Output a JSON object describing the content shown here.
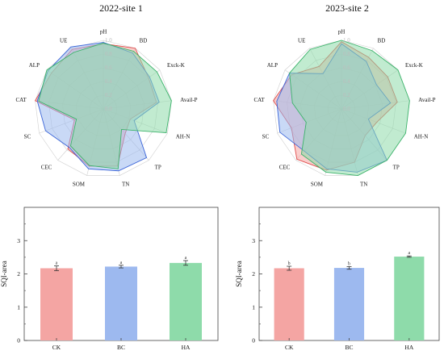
{
  "colors": {
    "CK": "#f4a5a3",
    "BC": "#9db9ef",
    "HA": "#8edbaa",
    "CK_line": "#e04a4a",
    "BC_line": "#3a64d8",
    "HA_line": "#3bb36a"
  },
  "chart_data": [
    {
      "type": "radar",
      "title": "2022-site 1",
      "axes": [
        "pH",
        "BD",
        "Exck-K",
        "Avail-P",
        "AH-N",
        "TP",
        "TN",
        "SOM",
        "CEC",
        "SC",
        "CAT",
        "ALP",
        "UE"
      ],
      "r_ticks": [
        "0.0",
        "0.2",
        "0.4",
        "0.6",
        "0.8",
        "1.0"
      ],
      "rlim": [
        0,
        1
      ],
      "series": [
        {
          "name": "CK",
          "values": [
            0.95,
            1.0,
            0.8,
            0.78,
            0.42,
            0.48,
            0.86,
            0.86,
            0.78,
            0.45,
            1.0,
            0.92,
            0.98
          ]
        },
        {
          "name": "BC",
          "values": [
            0.97,
            0.92,
            0.82,
            0.82,
            0.48,
            0.95,
            0.93,
            0.9,
            0.75,
            0.9,
            0.97,
            0.98,
            1.02
          ]
        },
        {
          "name": "HA",
          "values": [
            0.96,
            0.95,
            0.95,
            1.0,
            0.98,
            0.4,
            0.9,
            0.85,
            0.72,
            0.42,
            0.95,
            1.0,
            0.93
          ]
        }
      ]
    },
    {
      "type": "radar",
      "title": "2023-site 2",
      "axes": [
        "pH",
        "BD",
        "Exck-K",
        "Avail-P",
        "AH-N",
        "TP",
        "TN",
        "SOM",
        "CEC",
        "SC",
        "CAT",
        "ALP",
        "UE"
      ],
      "r_ticks": [
        "0.0",
        "0.2",
        "0.4",
        "0.6",
        "0.8",
        "1.0"
      ],
      "rlim": [
        0,
        1
      ],
      "series": [
        {
          "name": "CK",
          "values": [
            0.98,
            0.85,
            0.82,
            0.82,
            0.55,
            0.52,
            0.8,
            0.92,
            0.98,
            0.78,
            1.0,
            0.88,
            0.7
          ]
        },
        {
          "name": "BC",
          "values": [
            0.95,
            0.78,
            0.62,
            0.72,
            0.42,
            1.0,
            0.95,
            0.9,
            0.82,
            0.96,
            0.95,
            0.92,
            0.58
          ]
        },
        {
          "name": "HA",
          "values": [
            1.0,
            0.96,
            1.0,
            1.0,
            1.0,
            1.0,
            1.0,
            0.95,
            0.88,
            0.55,
            0.72,
            0.92,
            0.98
          ]
        }
      ]
    },
    {
      "type": "bar",
      "categories": [
        "CK",
        "BC",
        "HA"
      ],
      "values": [
        2.17,
        2.22,
        2.33
      ],
      "errors": [
        0.07,
        0.04,
        0.07
      ],
      "labels": [
        "a",
        "a",
        "a"
      ],
      "ylabel": "SQI-area",
      "ylim": [
        0,
        4
      ],
      "yticks": [
        "0",
        "1",
        "2",
        "3"
      ]
    },
    {
      "type": "bar",
      "categories": [
        "CK",
        "BC",
        "HA"
      ],
      "values": [
        2.17,
        2.18,
        2.52
      ],
      "errors": [
        0.06,
        0.04,
        0.02
      ],
      "labels": [
        "b",
        "b",
        "a"
      ],
      "ylabel": "SQI-area",
      "ylim": [
        0,
        4
      ],
      "yticks": [
        "0",
        "1",
        "2",
        "3"
      ]
    }
  ]
}
